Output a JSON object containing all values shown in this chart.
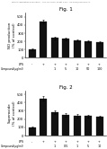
{
  "fig1": {
    "title": "Fig. 1",
    "ylabel": "NO production\n(% of control)",
    "ylim": [
      0,
      550
    ],
    "yticks": [
      0,
      100,
      200,
      300,
      400,
      500
    ],
    "bar_values": [
      100,
      440,
      240,
      230,
      210,
      200,
      185
    ],
    "bar_errors": [
      8,
      25,
      18,
      16,
      15,
      14,
      12
    ],
    "x_labels_lps": [
      "-",
      "+",
      "+",
      "+",
      "+",
      "+",
      "+"
    ],
    "x_labels_conc": [
      "",
      "",
      "1",
      "5",
      "10",
      "50",
      "100"
    ],
    "xlabel_lps": "LPS",
    "xlabel_conc": "Compound(μg/ml)"
  },
  "fig2": {
    "title": "Fig. 2",
    "ylabel": "Superoxide\n(% of control)",
    "ylim": [
      0,
      550
    ],
    "yticks": [
      0,
      100,
      200,
      300,
      400,
      500
    ],
    "bar_values": [
      100,
      450,
      280,
      250,
      240,
      235,
      230
    ],
    "bar_errors": [
      10,
      28,
      22,
      20,
      18,
      16,
      15
    ],
    "x_labels_lps": [
      "-",
      "+",
      "+",
      "+",
      "+",
      "+",
      "+"
    ],
    "x_labels_conc": [
      "",
      "",
      "1",
      "0.5",
      "1",
      "5",
      "10"
    ],
    "xlabel_lps": "LPS",
    "xlabel_conc": "Compound(μg/ml)"
  },
  "header_text": "Patent Application Publication   Aug. 26, 2010  Sheet 1 of 7   US 2010/0215734 A1",
  "bg_color": "#ffffff",
  "bar_color": "#111111",
  "font_size": 3.2,
  "title_fontsize": 4.0
}
